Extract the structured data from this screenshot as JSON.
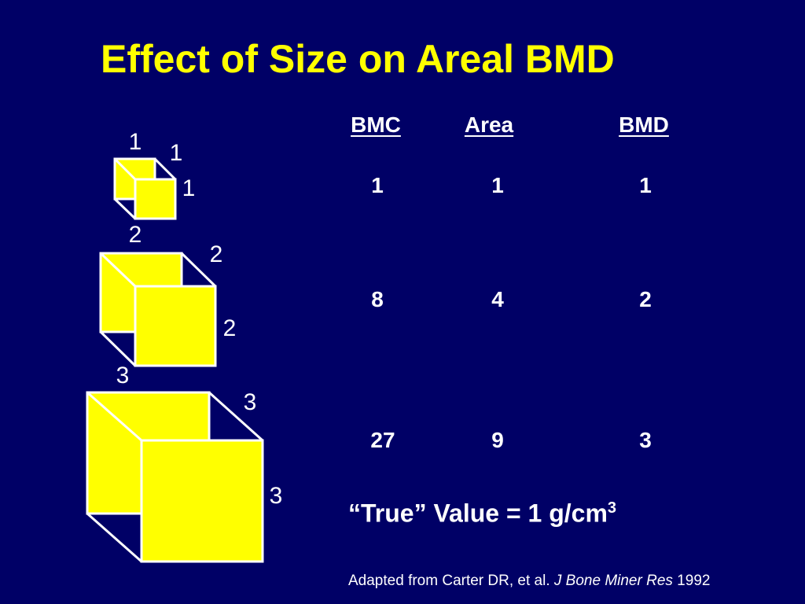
{
  "slide": {
    "title": "Effect of Size on Areal BMD",
    "columns": [
      "BMC",
      "Area",
      "BMD"
    ],
    "rows": [
      [
        "1",
        "1",
        "1"
      ],
      [
        "8",
        "4",
        "2"
      ],
      [
        "27",
        "9",
        "3"
      ]
    ],
    "cubes": [
      {
        "dimensions": [
          "1",
          "1",
          "1"
        ]
      },
      {
        "dimensions": [
          "2",
          "2",
          "2"
        ]
      },
      {
        "dimensions": [
          "3",
          "3",
          "3"
        ]
      }
    ],
    "true_value": {
      "text": "“True” Value = 1 g/cm",
      "superscript": "3"
    },
    "citation": {
      "prefix": "Adapted from Carter DR, et al. ",
      "journal": "J Bone Miner Res",
      "year": " 1992"
    }
  },
  "colors": {
    "background": "#000066",
    "title": "#ffff00",
    "cube_fill": "#ffff00",
    "cube_edge": "#ffffff",
    "text": "#ffffff"
  }
}
